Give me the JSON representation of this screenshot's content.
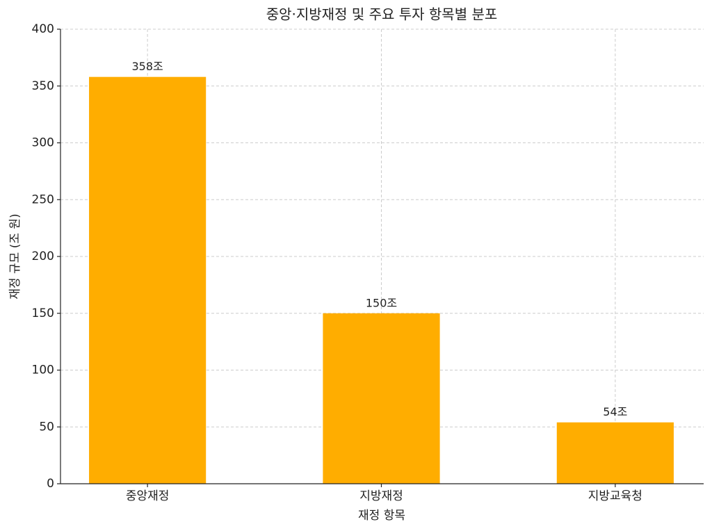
{
  "chart_data": {
    "type": "bar",
    "title": "중앙·지방재정 및 주요 투자 항목별 분포",
    "x_label": "재정 항목",
    "y_label": "재정 규모 (조 원)",
    "categories": [
      "중앙재정",
      "지방재정",
      "지방교육청"
    ],
    "values": [
      358,
      150,
      54
    ],
    "value_labels": [
      "358조",
      "150조",
      "54조"
    ],
    "color": "#ffad00",
    "ylim": [
      0,
      400
    ],
    "yticks": [
      0,
      50,
      100,
      150,
      200,
      250,
      300,
      350,
      400
    ],
    "grid": true
  }
}
